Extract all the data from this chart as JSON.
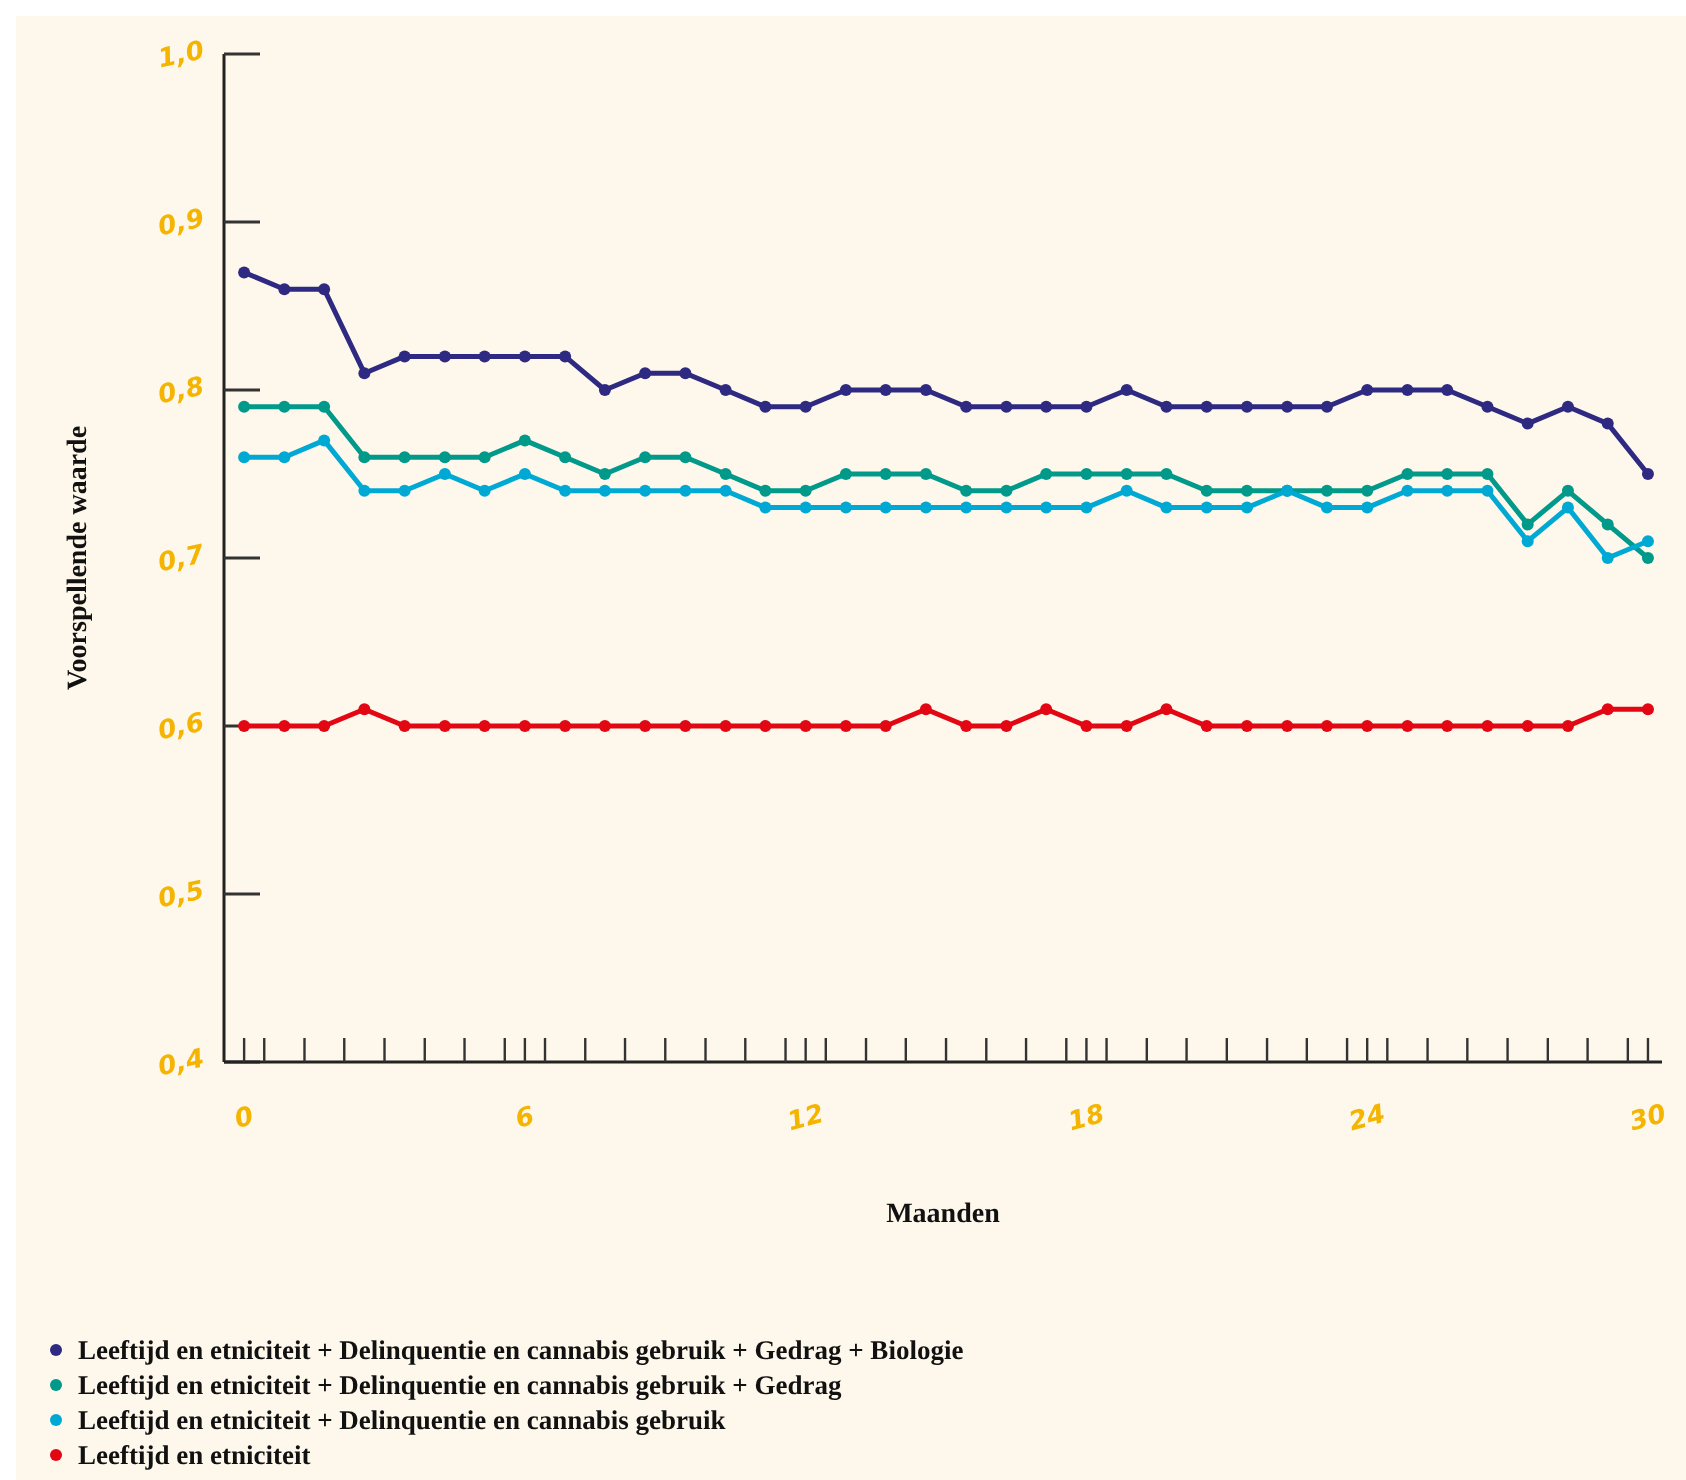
{
  "chart_data": {
    "type": "line",
    "xlabel": "Maanden",
    "ylabel": "Voorspellende waarde",
    "x": [
      0,
      0.86,
      1.71,
      2.57,
      3.43,
      4.29,
      5.14,
      6,
      6.86,
      7.71,
      8.57,
      9.43,
      10.29,
      11.14,
      12,
      12.86,
      13.71,
      14.57,
      15.43,
      16.29,
      17.14,
      18,
      18.86,
      19.71,
      20.57,
      21.43,
      22.29,
      23.14,
      24,
      24.86,
      25.71,
      26.57,
      27.43,
      28.29,
      29.14,
      30
    ],
    "series": [
      {
        "name": "Leeftijd en etniciteit + Delinquentie en cannabis gebruik + Gedrag + Biologie",
        "color": "#2e2a82",
        "values": [
          0.87,
          0.86,
          0.86,
          0.81,
          0.82,
          0.82,
          0.82,
          0.82,
          0.82,
          0.8,
          0.81,
          0.81,
          0.8,
          0.79,
          0.79,
          0.8,
          0.8,
          0.8,
          0.79,
          0.79,
          0.79,
          0.79,
          0.8,
          0.79,
          0.79,
          0.79,
          0.79,
          0.79,
          0.8,
          0.8,
          0.8,
          0.79,
          0.78,
          0.79,
          0.78,
          0.75
        ]
      },
      {
        "name": "Leeftijd en etniciteit + Delinquentie en cannabis gebruik + Gedrag",
        "color": "#00998a",
        "values": [
          0.79,
          0.79,
          0.79,
          0.76,
          0.76,
          0.76,
          0.76,
          0.77,
          0.76,
          0.75,
          0.76,
          0.76,
          0.75,
          0.74,
          0.74,
          0.75,
          0.75,
          0.75,
          0.74,
          0.74,
          0.75,
          0.75,
          0.75,
          0.75,
          0.74,
          0.74,
          0.74,
          0.74,
          0.74,
          0.75,
          0.75,
          0.75,
          0.72,
          0.74,
          0.72,
          0.7
        ]
      },
      {
        "name": "Leeftijd en etniciteit + Delinquentie en cannabis gebruik",
        "color": "#00a9d4",
        "values": [
          0.76,
          0.76,
          0.77,
          0.74,
          0.74,
          0.75,
          0.74,
          0.75,
          0.74,
          0.74,
          0.74,
          0.74,
          0.74,
          0.73,
          0.73,
          0.73,
          0.73,
          0.73,
          0.73,
          0.73,
          0.73,
          0.73,
          0.74,
          0.73,
          0.73,
          0.73,
          0.74,
          0.73,
          0.73,
          0.74,
          0.74,
          0.74,
          0.71,
          0.73,
          0.7,
          0.71
        ]
      },
      {
        "name": "Leeftijd en etniciteit",
        "color": "#e30613",
        "values": [
          0.6,
          0.6,
          0.6,
          0.61,
          0.6,
          0.6,
          0.6,
          0.6,
          0.6,
          0.6,
          0.6,
          0.6,
          0.6,
          0.6,
          0.6,
          0.6,
          0.6,
          0.61,
          0.6,
          0.6,
          0.61,
          0.6,
          0.6,
          0.61,
          0.6,
          0.6,
          0.6,
          0.6,
          0.6,
          0.6,
          0.6,
          0.6,
          0.6,
          0.6,
          0.61,
          0.61
        ]
      }
    ],
    "xlim": [
      -0.43,
      30.3
    ],
    "xticks": [
      0,
      6,
      12,
      18,
      24,
      30,
      {
        "value": 0.43,
        "label": null
      },
      {
        "value": 1.29,
        "label": null
      },
      {
        "value": 2.14,
        "label": null
      },
      {
        "value": 3,
        "label": null
      },
      {
        "value": 3.86,
        "label": null
      },
      {
        "value": 4.71,
        "label": null
      },
      {
        "value": 5.57,
        "label": null
      },
      {
        "value": 6.43,
        "label": null
      },
      {
        "value": 7.29,
        "label": null
      },
      {
        "value": 8.14,
        "label": null
      },
      {
        "value": 9,
        "label": null
      },
      {
        "value": 9.86,
        "label": null
      },
      {
        "value": 10.71,
        "label": null
      },
      {
        "value": 11.57,
        "label": null
      },
      {
        "value": 12.43,
        "label": null
      },
      {
        "value": 13.29,
        "label": null
      },
      {
        "value": 14.14,
        "label": null
      },
      {
        "value": 15,
        "label": null
      },
      {
        "value": 15.86,
        "label": null
      },
      {
        "value": 16.71,
        "label": null
      },
      {
        "value": 17.57,
        "label": null
      },
      {
        "value": 18.43,
        "label": null
      },
      {
        "value": 19.29,
        "label": null
      },
      {
        "value": 20.14,
        "label": null
      },
      {
        "value": 21,
        "label": null
      },
      {
        "value": 21.86,
        "label": null
      },
      {
        "value": 22.71,
        "label": null
      },
      {
        "value": 23.57,
        "label": null
      },
      {
        "value": 24.43,
        "label": null
      },
      {
        "value": 25.29,
        "label": null
      },
      {
        "value": 26.14,
        "label": null
      },
      {
        "value": 27,
        "label": null
      },
      {
        "value": 27.86,
        "label": null
      },
      {
        "value": 28.71,
        "label": null
      },
      {
        "value": 29.57,
        "label": null
      }
    ],
    "ylim": [
      0.4,
      1.0
    ],
    "yticks": [
      {
        "value": 0.4,
        "label": "0,4"
      },
      {
        "value": 0.5,
        "label": "0,5"
      },
      {
        "value": 0.6,
        "label": "0,6"
      },
      {
        "value": 0.7,
        "label": "0,7"
      },
      {
        "value": 0.8,
        "label": "0,8"
      },
      {
        "value": 0.9,
        "label": "0,9"
      },
      {
        "value": 1.0,
        "label": "1,0"
      }
    ],
    "grid": false,
    "legend": "bottom",
    "marker": "circle",
    "line_style": "solid"
  }
}
